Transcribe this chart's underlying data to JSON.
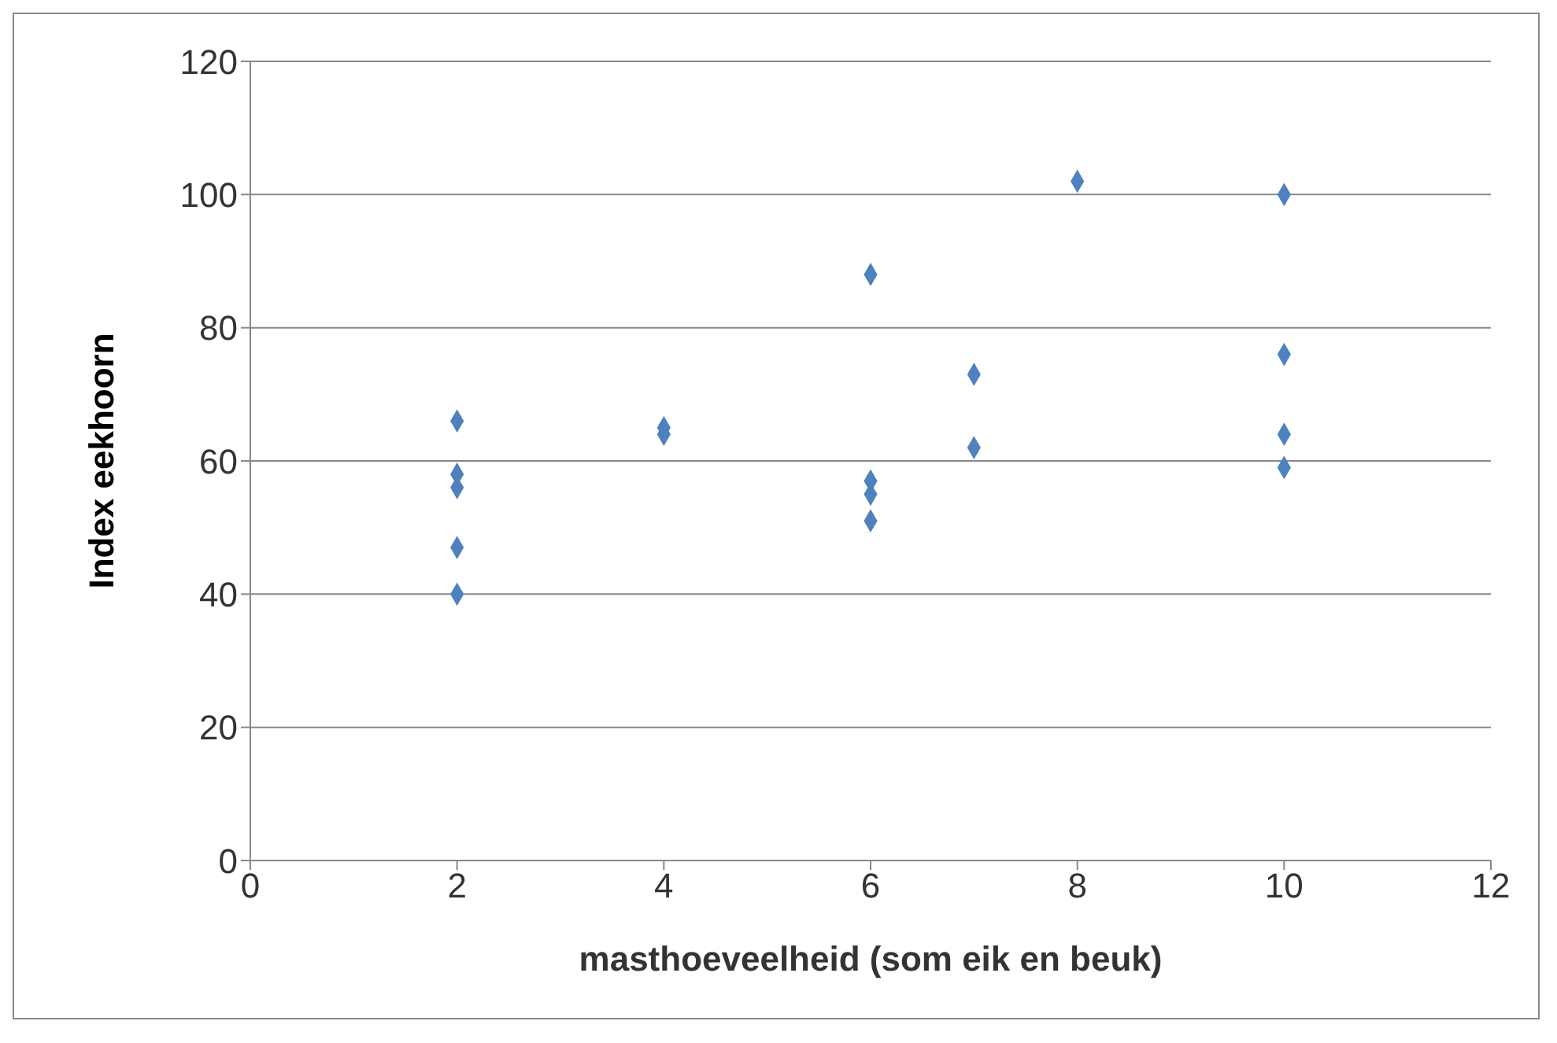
{
  "chart_data": {
    "type": "scatter",
    "xlabel": "masthoeveelheid (som eik en beuk)",
    "ylabel": "Index eekhoorn",
    "x": [
      2,
      2,
      2,
      2,
      2,
      4,
      4,
      6,
      6,
      6,
      6,
      7,
      7,
      8,
      10,
      10,
      10,
      10
    ],
    "values": [
      66,
      58,
      56,
      47,
      40,
      65,
      64,
      88,
      57,
      55,
      51,
      73,
      62,
      102,
      100,
      76,
      64,
      59
    ],
    "color": "#4f81bd",
    "marker": "diamond",
    "grid": "y",
    "legend": false,
    "xlim": [
      0,
      12
    ],
    "xticks": [
      0,
      2,
      4,
      6,
      8,
      10,
      12
    ],
    "ylim": [
      0,
      120
    ],
    "yticks": [
      0,
      20,
      40,
      60,
      80,
      100,
      120
    ]
  }
}
